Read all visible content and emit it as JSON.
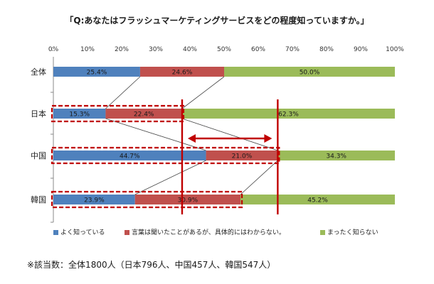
{
  "chart_data": {
    "type": "bar",
    "stacked": true,
    "orientation": "horizontal",
    "title": "「Q:あなたはフラッシュマーケティングサービスをどの程度知っていますか。」",
    "categories": [
      "全体",
      "日本",
      "中国",
      "韓国"
    ],
    "series": [
      {
        "name": "よく知っている",
        "values": [
          25.4,
          15.3,
          44.7,
          23.9
        ],
        "labels": [
          "25.4%",
          "15.3%",
          "44.7%",
          "23.9%"
        ],
        "color": "#4f81bd"
      },
      {
        "name": "言葉は聞いたことがあるが、具体的にはわからない。",
        "values": [
          24.6,
          22.4,
          21.0,
          30.9
        ],
        "labels": [
          "24.6%",
          "22.4%",
          "21.0%",
          "30.9%"
        ],
        "color": "#c0504d"
      },
      {
        "name": "まったく知らない",
        "values": [
          50.0,
          62.3,
          34.3,
          45.2
        ],
        "labels": [
          "50.0%",
          "62.3%",
          "34.3%",
          "45.2%"
        ],
        "color": "#9bbb59"
      }
    ],
    "xticks": [
      "0%",
      "10%",
      "20%",
      "30%",
      "40%",
      "50%",
      "60%",
      "70%",
      "80%",
      "90%",
      "100%"
    ],
    "xlim": [
      0,
      100
    ],
    "grid": false,
    "legend_position": "bottom",
    "annotations": {
      "highlight_rows": [
        "日本",
        "中国",
        "韓国"
      ],
      "reference_lines_at": [
        37.7,
        65.7
      ],
      "arrow_between": [
        37.7,
        65.7
      ],
      "highlight_color": "#c00000"
    }
  },
  "footnote": "※該当数：全体1800人（日本796人、中国457人、韓国547人）"
}
